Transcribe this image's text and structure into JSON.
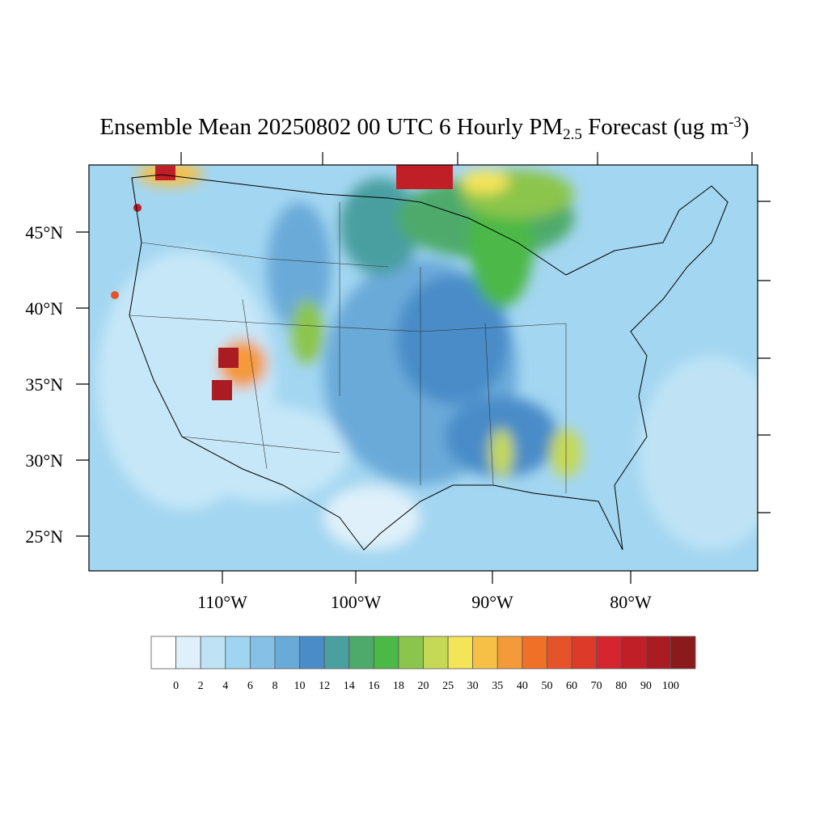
{
  "title": {
    "main": "Ensemble Mean 20250802 00 UTC 6 Hourly PM",
    "subscript": "2.5",
    "rest": " Forecast (ug m",
    "superscript": "-3",
    "end": ")"
  },
  "lat_labels": [
    "45°N",
    "40°N",
    "35°N",
    "30°N",
    "25°N"
  ],
  "lon_labels": [
    "110°W",
    "100°W",
    "90°W",
    "80°W"
  ],
  "colorbar": {
    "levels": [
      0,
      2,
      4,
      6,
      8,
      10,
      12,
      14,
      16,
      18,
      20,
      25,
      30,
      35,
      40,
      50,
      60,
      70,
      80,
      90,
      100
    ],
    "colors": [
      "#ffffff",
      "#dff0fa",
      "#bfe3f5",
      "#9fd5f0",
      "#86c0e6",
      "#6aaad9",
      "#4a8cc8",
      "#4a9fa0",
      "#4eaa6a",
      "#4cb847",
      "#8cc54b",
      "#c5d957",
      "#f4e458",
      "#f6c046",
      "#f49a3a",
      "#f07028",
      "#e5532b",
      "#dd3a2a",
      "#d42530",
      "#c01f28",
      "#a91d22",
      "#8b1a1c"
    ]
  }
}
